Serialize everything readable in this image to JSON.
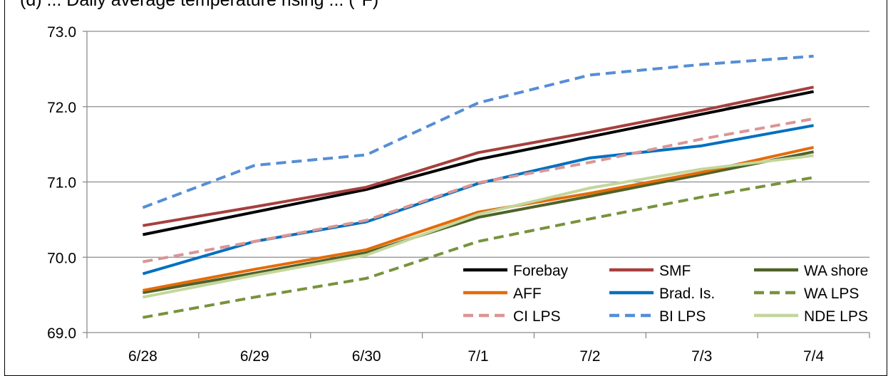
{
  "title": "(d) ... Daily average temperature rising ... (°F)",
  "chart_data": {
    "type": "line",
    "categories": [
      "6/28",
      "6/29",
      "6/30",
      "7/1",
      "7/2",
      "7/3",
      "7/4"
    ],
    "ylim": [
      69.0,
      73.0
    ],
    "yticks": [
      "69.0",
      "70.0",
      "71.0",
      "72.0",
      "73.0"
    ],
    "grid": true,
    "legend_position": "bottom-right, inside plot, 3 columns",
    "series": [
      {
        "name": "Forebay",
        "color": "#000000",
        "dash": "solid",
        "values": [
          70.3,
          70.6,
          70.9,
          71.3,
          71.6,
          71.9,
          72.2
        ]
      },
      {
        "name": "SMF",
        "color": "#A5403E",
        "dash": "solid",
        "values": [
          70.42,
          70.67,
          70.93,
          71.39,
          71.66,
          71.95,
          72.26
        ]
      },
      {
        "name": "WA shore",
        "color": "#4F6228",
        "dash": "solid",
        "values": [
          69.53,
          69.79,
          70.06,
          70.53,
          70.81,
          71.1,
          71.4
        ]
      },
      {
        "name": "AFF",
        "color": "#E36C0A",
        "dash": "solid",
        "values": [
          69.56,
          69.84,
          70.1,
          70.6,
          70.85,
          71.13,
          71.46
        ]
      },
      {
        "name": "Brad. Is.",
        "color": "#0070C0",
        "dash": "solid",
        "values": [
          69.78,
          70.21,
          70.47,
          70.98,
          71.32,
          71.48,
          71.75
        ]
      },
      {
        "name": "WA LPS",
        "color": "#77933C",
        "dash": "dashed",
        "values": [
          69.2,
          69.47,
          69.72,
          70.21,
          70.51,
          70.8,
          71.06
        ]
      },
      {
        "name": "CI LPS",
        "color": "#D99694",
        "dash": "dashed",
        "values": [
          69.94,
          70.21,
          70.49,
          70.99,
          71.26,
          71.57,
          71.84
        ]
      },
      {
        "name": "BI LPS",
        "color": "#558ED5",
        "dash": "dashed",
        "values": [
          70.66,
          71.22,
          71.36,
          72.05,
          72.42,
          72.56,
          72.67
        ]
      },
      {
        "name": "NDE LPS",
        "color": "#C3D69B",
        "dash": "solid",
        "values": [
          69.47,
          69.76,
          70.03,
          70.57,
          70.92,
          71.17,
          71.35
        ]
      }
    ]
  }
}
